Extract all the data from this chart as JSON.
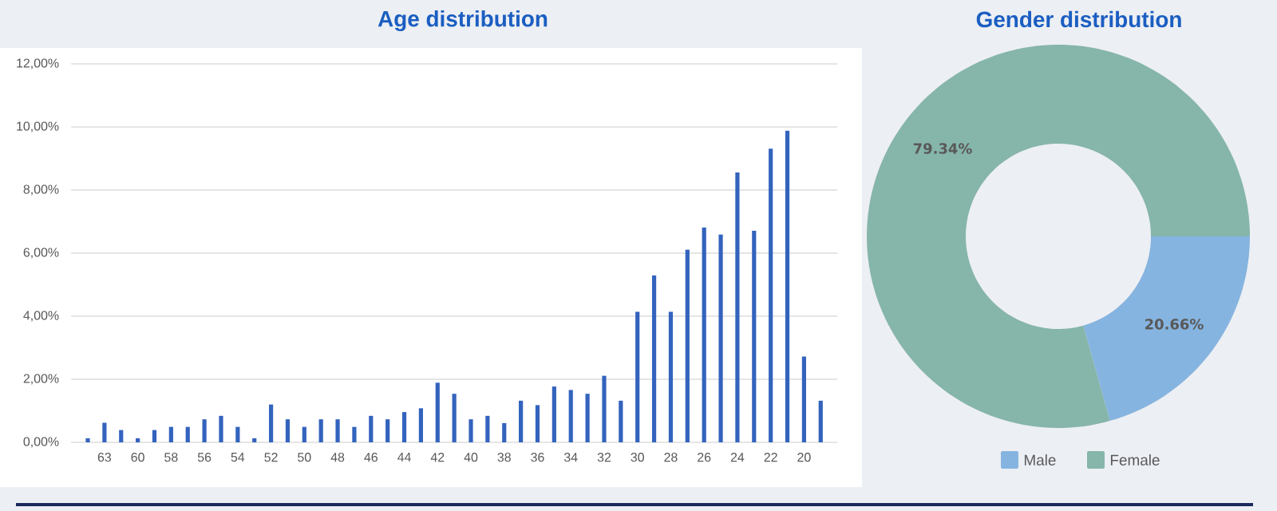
{
  "chart_data": [
    {
      "type": "bar",
      "title": "Age distribution",
      "categories": [
        null,
        "63",
        null,
        "60",
        null,
        "58",
        null,
        "56",
        null,
        "54",
        null,
        "52",
        null,
        "50",
        null,
        "48",
        null,
        "46",
        null,
        "44",
        null,
        "42",
        null,
        "40",
        null,
        "38",
        null,
        "36",
        null,
        "34",
        null,
        "32",
        null,
        "30",
        null,
        "28",
        null,
        "26",
        null,
        "24",
        null,
        "22",
        null,
        "20",
        null
      ],
      "values": [
        0.13,
        0.62,
        0.39,
        0.13,
        0.39,
        0.49,
        0.49,
        0.73,
        0.84,
        0.49,
        0.13,
        1.2,
        0.73,
        0.49,
        0.73,
        0.73,
        0.49,
        0.84,
        0.73,
        0.96,
        1.08,
        1.89,
        1.54,
        0.73,
        0.84,
        0.61,
        1.32,
        1.18,
        1.77,
        1.66,
        1.54,
        2.11,
        1.32,
        4.14,
        5.29,
        4.14,
        6.11,
        6.81,
        6.59,
        8.56,
        6.71,
        9.31,
        9.88,
        2.72,
        1.32
      ],
      "color": "#3363bd",
      "ylim": [
        0,
        12
      ],
      "yticks": [
        {
          "value": 0,
          "label": "0,00%"
        },
        {
          "value": 2,
          "label": "2,00%"
        },
        {
          "value": 4,
          "label": "4,00%"
        },
        {
          "value": 6,
          "label": "6,00%"
        },
        {
          "value": 8,
          "label": "8,00%"
        },
        {
          "value": 10,
          "label": "10,00%"
        },
        {
          "value": 12,
          "label": "12,00%"
        }
      ],
      "grid": "y"
    },
    {
      "type": "donut",
      "title": "Gender distribution",
      "categories": [
        "Male",
        "Female"
      ],
      "values": [
        20.66,
        79.34
      ],
      "colors": [
        "#86b4e0",
        "#86b5aa"
      ],
      "value_labels": [
        "20.66%",
        "79.34%"
      ],
      "legend": "bottom"
    }
  ]
}
